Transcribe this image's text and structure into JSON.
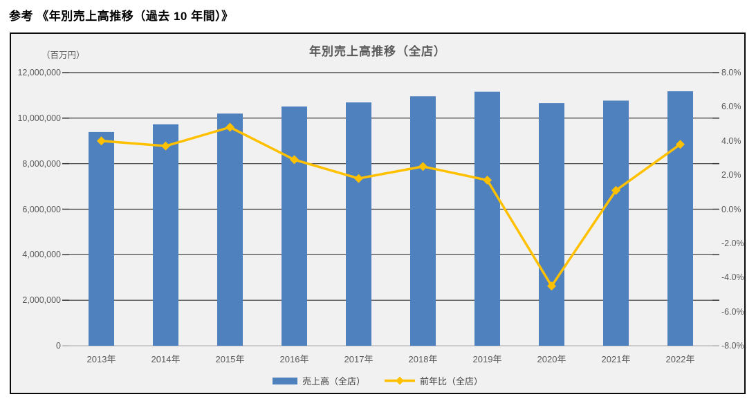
{
  "page": {
    "header": "参考 《年別売上高推移（過去 10 年間）》"
  },
  "chart": {
    "title": "年別売上高推移（全店）",
    "unit_label": "（百万円）",
    "colors": {
      "bar": "#4E81BD",
      "line": "#FFC000",
      "grid": "#333333",
      "baseline": "#BFBFBF",
      "card_bg": "#F1F1F1",
      "card_border": "#0A0A0A",
      "tick_text": "#595959"
    }
  },
  "chart_data": {
    "type": "bar+line",
    "title": "年別売上高推移（全店）",
    "categories": [
      "2013年",
      "2014年",
      "2015年",
      "2016年",
      "2017年",
      "2018年",
      "2019年",
      "2020年",
      "2021年",
      "2022年"
    ],
    "series": [
      {
        "name": "売上高（全店）",
        "type": "bar",
        "axis": "left",
        "unit": "百万円",
        "color": "#4E81BD",
        "values": [
          9390000,
          9730000,
          10200000,
          10510000,
          10690000,
          10960000,
          11160000,
          10660000,
          10770000,
          11180000
        ]
      },
      {
        "name": "前年比（全店）",
        "type": "line",
        "axis": "right",
        "unit": "%",
        "color": "#FFC000",
        "marker": "diamond",
        "values": [
          4.0,
          3.7,
          4.8,
          2.9,
          1.8,
          2.5,
          1.7,
          -4.5,
          1.1,
          3.8
        ]
      }
    ],
    "left_axis": {
      "label": "（百万円）",
      "min": 0,
      "max": 12000000,
      "step": 2000000,
      "tick_labels": [
        "12,000,000",
        "10,000,000",
        "8,000,000",
        "6,000,000",
        "4,000,000",
        "2,000,000",
        "0"
      ]
    },
    "right_axis": {
      "min": -8,
      "max": 8,
      "step": 2,
      "tick_labels": [
        "8.0%",
        "6.0%",
        "4.0%",
        "2.0%",
        "0.0%",
        "-2.0%",
        "-4.0%",
        "-6.0%",
        "-8.0%"
      ]
    },
    "grid": true,
    "legend_position": "bottom"
  }
}
